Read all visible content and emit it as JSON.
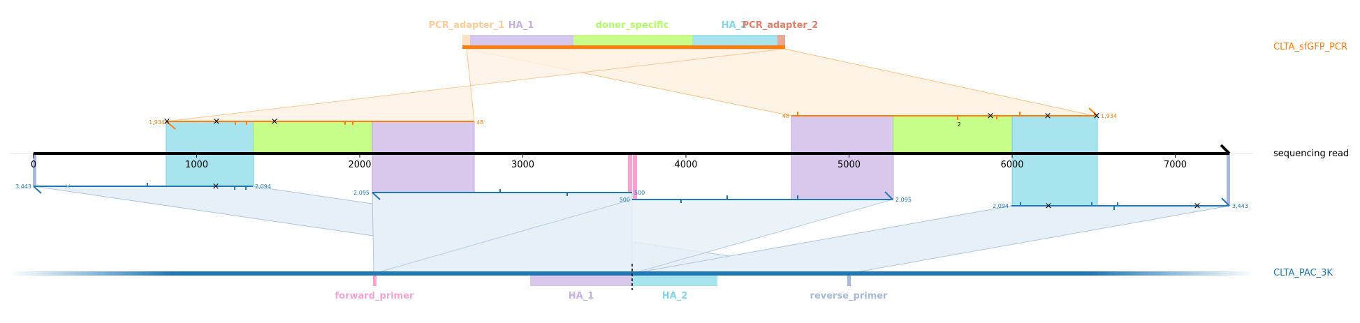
{
  "colors": {
    "pcr_orange": "#ff7f0e",
    "read_black": "#000000",
    "target_blue": "#1f77b4",
    "pcr_adapter_1": "#ffcc99",
    "ha_1": "#c5b0e1",
    "donor_specific": "#b3ff66",
    "ha_2": "#80d8e8",
    "pcr_adapter_2": "#e89a8a",
    "forward_primer": "#f7a3d1",
    "reverse_primer": "#a7b8dc"
  },
  "labels": {
    "pcr_name": "CLTA_sfGFP_PCR",
    "read_name": "sequencing read",
    "target_name": "CLTA_PAC_3K"
  },
  "pcr_features": [
    {
      "key": "pcr_adapter_1",
      "label": "PCR_adapter_1"
    },
    {
      "key": "ha_1",
      "label": "HA_1"
    },
    {
      "key": "donor_specific",
      "label": "donor_specific"
    },
    {
      "key": "ha_2",
      "label": "HA_2"
    },
    {
      "key": "pcr_adapter_2",
      "label": "PCR_adapter_2"
    }
  ],
  "target_features": [
    {
      "key": "forward_primer",
      "label": "forward_primer"
    },
    {
      "key": "ha_1",
      "label": "HA_1"
    },
    {
      "key": "ha_2",
      "label": "HA_2"
    },
    {
      "key": "reverse_primer",
      "label": "reverse_primer"
    }
  ],
  "read_axis": {
    "ticks": [
      "0",
      "1000",
      "2000",
      "3000",
      "4000",
      "5000",
      "6000",
      "7000"
    ]
  },
  "pcr_alignments": [
    {
      "start_label": "1,934",
      "end_label": "48"
    },
    {
      "start_label": "48",
      "end_label": "1,934",
      "note": "2"
    }
  ],
  "target_alignments": [
    {
      "start_label": "3,443",
      "end_label": "2,094"
    },
    {
      "start_label": "2,095",
      "end_label": "500"
    },
    {
      "start_label": "500",
      "end_label": "2,095"
    },
    {
      "start_label": "2,094",
      "end_label": "3,443"
    }
  ]
}
